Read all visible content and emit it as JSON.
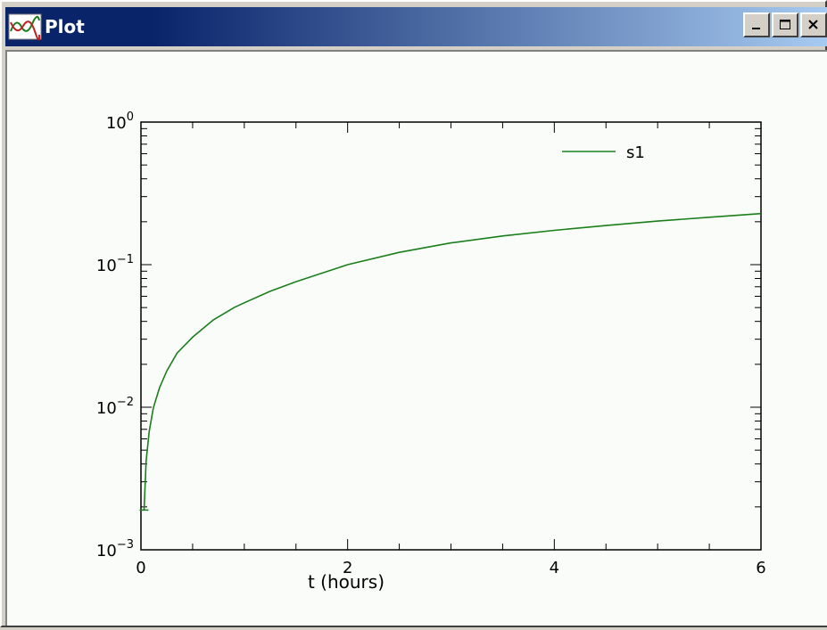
{
  "window": {
    "title": "Plot",
    "minimize_label": "_",
    "maximize_label": "□",
    "close_label": "×"
  },
  "icons": {
    "app": "plot-app-icon",
    "minimize": "minimize-icon",
    "maximize": "maximize-icon",
    "close": "close-icon"
  },
  "colors": {
    "series": "#1a7f1a",
    "titlebar_start": "#0a246a",
    "titlebar_end": "#a6caf0",
    "plot_bg": "#fafcfa"
  },
  "chart_data": {
    "type": "line",
    "title": "",
    "xlabel": "t (hours)",
    "ylabel": "",
    "xlim": [
      0,
      6
    ],
    "ylim": [
      0.001,
      1
    ],
    "yscale": "log",
    "grid": false,
    "legend_position": "top-right",
    "x_ticks": [
      0,
      2,
      4,
      6
    ],
    "x_tick_labels": [
      "0",
      "2",
      "4",
      "6"
    ],
    "y_ticks": [
      0.001,
      0.01,
      0.1,
      1
    ],
    "y_tick_labels": [
      {
        "base": "10",
        "exp": "−3"
      },
      {
        "base": "10",
        "exp": "−2"
      },
      {
        "base": "10",
        "exp": "−1"
      },
      {
        "base": "10",
        "exp": "0"
      }
    ],
    "series": [
      {
        "name": "s1",
        "x": [
          0.03,
          0.05,
          0.08,
          0.12,
          0.18,
          0.25,
          0.35,
          0.5,
          0.7,
          0.9,
          1.0,
          1.25,
          1.5,
          2.0,
          2.5,
          3.0,
          3.5,
          4.0,
          4.5,
          5.0,
          5.5,
          6.0
        ],
        "y": [
          0.0019,
          0.0042,
          0.0068,
          0.0099,
          0.0137,
          0.018,
          0.024,
          0.031,
          0.041,
          0.05,
          0.054,
          0.065,
          0.076,
          0.1,
          0.122,
          0.142,
          0.159,
          0.174,
          0.188,
          0.202,
          0.215,
          0.228
        ]
      }
    ]
  }
}
